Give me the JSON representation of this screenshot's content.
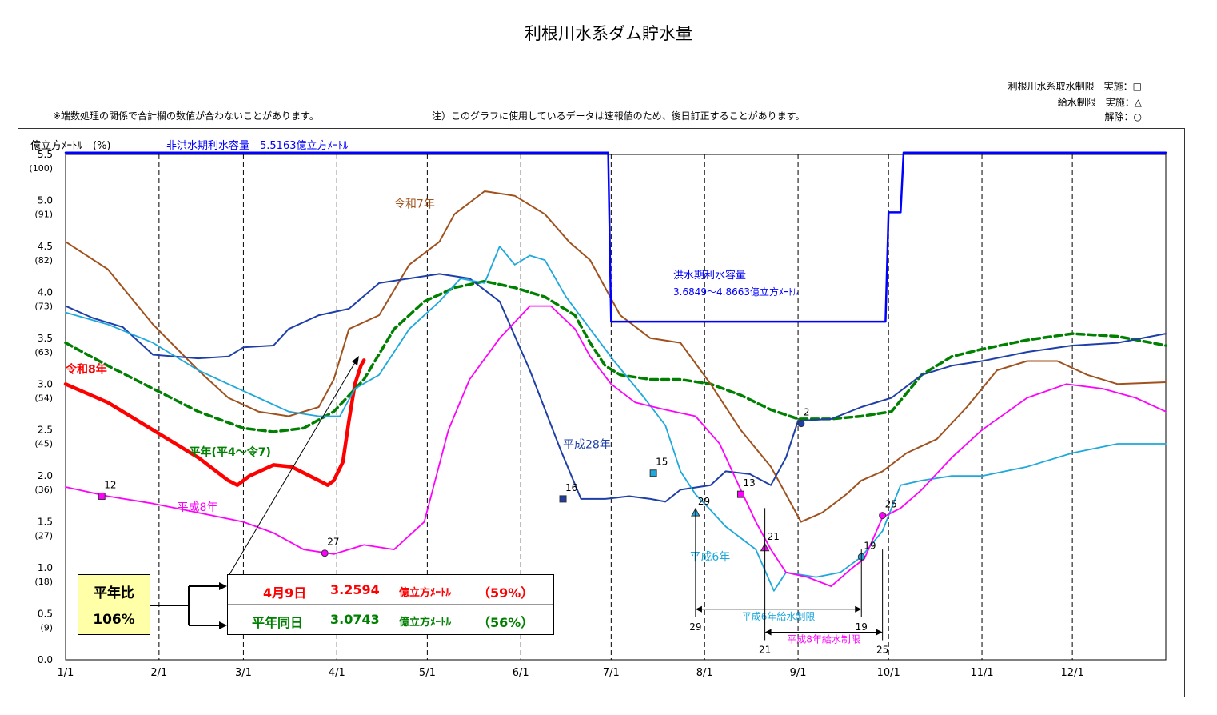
{
  "title": "利根川水系ダム貯水量",
  "legend": {
    "line1": "利根川水系取水制限　実施：□",
    "line2": "給水制限　実施：△",
    "line3": "解除：○"
  },
  "notes": {
    "left": "※端数処理の関係で合計欄の数値が合わないことがあります。",
    "right": "注）このグラフに使用しているデータは速報値のため、後日訂正することがあります。"
  },
  "summary": {
    "ratio_label": "平年比",
    "ratio_value": "106%",
    "current": {
      "date": "4月9日",
      "value": "3.2594",
      "unit": "億立方ﾒｰﾄﾙ",
      "pct": "（59%）"
    },
    "normal": {
      "date": "平年同日",
      "value": "3.0743",
      "unit": "億立方ﾒｰﾄﾙ",
      "pct": "（56%）"
    }
  },
  "colors": {
    "reiwa8": "#ff0000",
    "heinen": "#008000",
    "reiwa7": "#a0521e",
    "heisei28": "#1f3fa8",
    "heisei6": "#1ea8dc",
    "heisei8": "#ff00ff",
    "capacity": "#0000ff"
  },
  "chart_data": {
    "type": "line",
    "ylabel": "億立方ﾒｰﾄﾙ　(%)",
    "yticks": [
      {
        "v": 0.0,
        "label": "0.0",
        "pct": ""
      },
      {
        "v": 0.5,
        "label": "0.5",
        "pct": "(9)"
      },
      {
        "v": 1.0,
        "label": "1.0",
        "pct": "(18)"
      },
      {
        "v": 1.5,
        "label": "1.5",
        "pct": "(27)"
      },
      {
        "v": 2.0,
        "label": "2.0",
        "pct": "(36)"
      },
      {
        "v": 2.5,
        "label": "2.5",
        "pct": "(45)"
      },
      {
        "v": 3.0,
        "label": "3.0",
        "pct": "(54)"
      },
      {
        "v": 3.5,
        "label": "3.5",
        "pct": "(63)"
      },
      {
        "v": 4.0,
        "label": "4.0",
        "pct": "(73)"
      },
      {
        "v": 4.5,
        "label": "4.5",
        "pct": "(82)"
      },
      {
        "v": 5.0,
        "label": "5.0",
        "pct": "(91)"
      },
      {
        "v": 5.5,
        "label": "5.5",
        "pct": "(100)"
      }
    ],
    "ylim": [
      0,
      5.5
    ],
    "xlim": [
      1,
      366
    ],
    "xticks": [
      {
        "d": 1,
        "label": "1/1"
      },
      {
        "d": 32,
        "label": "2/1"
      },
      {
        "d": 60,
        "label": "3/1"
      },
      {
        "d": 91,
        "label": "4/1"
      },
      {
        "d": 121,
        "label": "5/1"
      },
      {
        "d": 152,
        "label": "6/1"
      },
      {
        "d": 182,
        "label": "7/1"
      },
      {
        "d": 213,
        "label": "8/1"
      },
      {
        "d": 244,
        "label": "9/1"
      },
      {
        "d": 274,
        "label": "10/1"
      },
      {
        "d": 305,
        "label": "11/1"
      },
      {
        "d": 335,
        "label": "12/1"
      }
    ],
    "capacity_text": "非洪水期利水容量　5.5163億立方ﾒｰﾄﾙ",
    "flood_text1": "洪水期利水容量",
    "flood_text2": "3.6849～4.8663億立方ﾒｰﾄﾙ",
    "series": [
      {
        "name": "令和8年",
        "key": "reiwa8",
        "width": 4.5,
        "dash": "",
        "pts": [
          [
            1,
            3.0
          ],
          [
            15,
            2.8
          ],
          [
            30,
            2.5
          ],
          [
            45,
            2.2
          ],
          [
            55,
            1.95
          ],
          [
            58,
            1.9
          ],
          [
            62,
            2.0
          ],
          [
            70,
            2.12
          ],
          [
            76,
            2.1
          ],
          [
            85,
            1.95
          ],
          [
            88,
            1.9
          ],
          [
            90,
            1.95
          ],
          [
            93,
            2.15
          ],
          [
            95,
            2.6
          ],
          [
            97,
            3.0
          ],
          [
            99,
            3.2
          ],
          [
            100,
            3.26
          ]
        ]
      },
      {
        "name": "平年(平4～令7)",
        "key": "heinen",
        "width": 3.5,
        "dash": "9,5",
        "pts": [
          [
            1,
            3.45
          ],
          [
            15,
            3.2
          ],
          [
            30,
            2.95
          ],
          [
            45,
            2.7
          ],
          [
            60,
            2.52
          ],
          [
            70,
            2.48
          ],
          [
            80,
            2.52
          ],
          [
            90,
            2.7
          ],
          [
            100,
            3.05
          ],
          [
            110,
            3.6
          ],
          [
            120,
            3.9
          ],
          [
            130,
            4.05
          ],
          [
            140,
            4.12
          ],
          [
            150,
            4.05
          ],
          [
            160,
            3.95
          ],
          [
            170,
            3.75
          ],
          [
            175,
            3.45
          ],
          [
            180,
            3.2
          ],
          [
            185,
            3.1
          ],
          [
            195,
            3.05
          ],
          [
            205,
            3.05
          ],
          [
            215,
            3.0
          ],
          [
            225,
            2.88
          ],
          [
            235,
            2.72
          ],
          [
            244,
            2.62
          ],
          [
            255,
            2.62
          ],
          [
            265,
            2.65
          ],
          [
            275,
            2.7
          ],
          [
            285,
            3.1
          ],
          [
            295,
            3.3
          ],
          [
            305,
            3.38
          ],
          [
            320,
            3.48
          ],
          [
            335,
            3.55
          ],
          [
            350,
            3.52
          ],
          [
            366,
            3.42
          ]
        ]
      },
      {
        "name": "令和7年",
        "key": "reiwa7",
        "width": 2,
        "dash": "",
        "pts": [
          [
            1,
            4.55
          ],
          [
            15,
            4.25
          ],
          [
            30,
            3.65
          ],
          [
            45,
            3.15
          ],
          [
            55,
            2.85
          ],
          [
            65,
            2.7
          ],
          [
            75,
            2.65
          ],
          [
            85,
            2.75
          ],
          [
            90,
            3.05
          ],
          [
            95,
            3.6
          ],
          [
            105,
            3.75
          ],
          [
            115,
            4.3
          ],
          [
            125,
            4.55
          ],
          [
            130,
            4.85
          ],
          [
            140,
            5.1
          ],
          [
            150,
            5.05
          ],
          [
            160,
            4.85
          ],
          [
            168,
            4.55
          ],
          [
            175,
            4.35
          ],
          [
            185,
            3.75
          ],
          [
            195,
            3.5
          ],
          [
            205,
            3.45
          ],
          [
            215,
            3.0
          ],
          [
            225,
            2.5
          ],
          [
            235,
            2.1
          ],
          [
            245,
            1.5
          ],
          [
            252,
            1.6
          ],
          [
            260,
            1.8
          ],
          [
            265,
            1.95
          ],
          [
            272,
            2.05
          ],
          [
            280,
            2.25
          ],
          [
            290,
            2.4
          ],
          [
            300,
            2.75
          ],
          [
            310,
            3.15
          ],
          [
            320,
            3.25
          ],
          [
            330,
            3.25
          ],
          [
            340,
            3.1
          ],
          [
            350,
            3.0
          ],
          [
            366,
            3.02
          ]
        ]
      },
      {
        "name": "平成28年",
        "key": "heisei28",
        "width": 2,
        "dash": "",
        "pts": [
          [
            1,
            3.85
          ],
          [
            10,
            3.72
          ],
          [
            20,
            3.62
          ],
          [
            30,
            3.32
          ],
          [
            45,
            3.28
          ],
          [
            55,
            3.3
          ],
          [
            60,
            3.4
          ],
          [
            70,
            3.42
          ],
          [
            75,
            3.6
          ],
          [
            85,
            3.75
          ],
          [
            95,
            3.82
          ],
          [
            105,
            4.1
          ],
          [
            115,
            4.15
          ],
          [
            125,
            4.2
          ],
          [
            135,
            4.15
          ],
          [
            145,
            3.9
          ],
          [
            155,
            3.15
          ],
          [
            165,
            2.3
          ],
          [
            172,
            1.75
          ],
          [
            180,
            1.75
          ],
          [
            188,
            1.78
          ],
          [
            195,
            1.75
          ],
          [
            200,
            1.72
          ],
          [
            205,
            1.85
          ],
          [
            215,
            1.9
          ],
          [
            220,
            2.05
          ],
          [
            228,
            2.02
          ],
          [
            235,
            1.9
          ],
          [
            240,
            2.2
          ],
          [
            244,
            2.6
          ],
          [
            255,
            2.62
          ],
          [
            265,
            2.75
          ],
          [
            275,
            2.85
          ],
          [
            285,
            3.1
          ],
          [
            295,
            3.2
          ],
          [
            305,
            3.25
          ],
          [
            320,
            3.35
          ],
          [
            335,
            3.42
          ],
          [
            350,
            3.45
          ],
          [
            366,
            3.55
          ]
        ]
      },
      {
        "name": "平成6年",
        "key": "heisei6",
        "width": 1.8,
        "dash": "",
        "pts": [
          [
            1,
            3.78
          ],
          [
            15,
            3.65
          ],
          [
            30,
            3.45
          ],
          [
            45,
            3.15
          ],
          [
            55,
            3.0
          ],
          [
            65,
            2.85
          ],
          [
            75,
            2.7
          ],
          [
            85,
            2.65
          ],
          [
            92,
            2.65
          ],
          [
            97,
            2.95
          ],
          [
            105,
            3.1
          ],
          [
            115,
            3.6
          ],
          [
            125,
            3.9
          ],
          [
            132,
            4.15
          ],
          [
            140,
            4.1
          ],
          [
            145,
            4.5
          ],
          [
            150,
            4.3
          ],
          [
            155,
            4.4
          ],
          [
            160,
            4.35
          ],
          [
            167,
            3.95
          ],
          [
            175,
            3.6
          ],
          [
            183,
            3.25
          ],
          [
            193,
            2.85
          ],
          [
            200,
            2.55
          ],
          [
            205,
            2.05
          ],
          [
            210,
            1.8
          ],
          [
            213,
            1.7
          ],
          [
            220,
            1.45
          ],
          [
            230,
            1.2
          ],
          [
            236,
            0.75
          ],
          [
            240,
            0.95
          ],
          [
            250,
            0.9
          ],
          [
            258,
            0.95
          ],
          [
            265,
            1.12
          ],
          [
            272,
            1.4
          ],
          [
            278,
            1.9
          ],
          [
            285,
            1.95
          ],
          [
            295,
            2.0
          ],
          [
            305,
            2.0
          ],
          [
            320,
            2.1
          ],
          [
            335,
            2.25
          ],
          [
            350,
            2.35
          ],
          [
            366,
            2.35
          ]
        ]
      },
      {
        "name": "平成8年",
        "key": "heisei8",
        "width": 1.8,
        "dash": "",
        "pts": [
          [
            1,
            1.88
          ],
          [
            15,
            1.78
          ],
          [
            30,
            1.7
          ],
          [
            45,
            1.6
          ],
          [
            60,
            1.5
          ],
          [
            70,
            1.38
          ],
          [
            80,
            1.2
          ],
          [
            90,
            1.15
          ],
          [
            100,
            1.25
          ],
          [
            110,
            1.2
          ],
          [
            120,
            1.5
          ],
          [
            128,
            2.5
          ],
          [
            135,
            3.05
          ],
          [
            145,
            3.5
          ],
          [
            155,
            3.85
          ],
          [
            162,
            3.85
          ],
          [
            170,
            3.6
          ],
          [
            175,
            3.3
          ],
          [
            182,
            3.0
          ],
          [
            190,
            2.8
          ],
          [
            200,
            2.72
          ],
          [
            210,
            2.65
          ],
          [
            218,
            2.35
          ],
          [
            225,
            1.85
          ],
          [
            230,
            1.5
          ],
          [
            235,
            1.2
          ],
          [
            240,
            0.95
          ],
          [
            247,
            0.9
          ],
          [
            255,
            0.8
          ],
          [
            262,
            1.0
          ],
          [
            266,
            1.1
          ],
          [
            272,
            1.55
          ],
          [
            278,
            1.65
          ],
          [
            285,
            1.85
          ],
          [
            295,
            2.2
          ],
          [
            305,
            2.5
          ],
          [
            320,
            2.85
          ],
          [
            333,
            3.0
          ],
          [
            345,
            2.95
          ],
          [
            356,
            2.85
          ],
          [
            366,
            2.7
          ]
        ]
      },
      {
        "name": "",
        "key": "capacity",
        "width": 2.5,
        "dash": "",
        "pts": [
          [
            1,
            5.52
          ],
          [
            181,
            5.52
          ],
          [
            182,
            3.68
          ],
          [
            273,
            3.68
          ],
          [
            274,
            4.87
          ],
          [
            278,
            4.87
          ],
          [
            279,
            5.52
          ],
          [
            366,
            5.52
          ]
        ]
      }
    ],
    "series_labels": [
      {
        "key": "reiwa8",
        "text": "令和8年",
        "d": 1,
        "v": 3.12,
        "bold": true
      },
      {
        "key": "heinen",
        "text": "平年(平4～令7)",
        "d": 42,
        "v": 2.22,
        "bold": true
      },
      {
        "key": "reiwa7",
        "text": "令和7年",
        "d": 110,
        "v": 4.92,
        "bold": false
      },
      {
        "key": "heisei28",
        "text": "平成28年",
        "d": 166,
        "v": 2.3,
        "bold": false
      },
      {
        "key": "heisei6",
        "text": "平成6年",
        "d": 208,
        "v": 1.08,
        "bold": false
      },
      {
        "key": "heisei8",
        "text": "平成8年",
        "d": 38,
        "v": 1.62,
        "bold": false
      }
    ],
    "markers": [
      {
        "key": "heisei8",
        "shape": "square",
        "d": 13,
        "v": 1.78,
        "label": "12"
      },
      {
        "key": "heisei8",
        "shape": "circle",
        "d": 87,
        "v": 1.16,
        "label": "27"
      },
      {
        "key": "heisei28",
        "shape": "square",
        "d": 166,
        "v": 1.75,
        "label": "16"
      },
      {
        "key": "heisei6",
        "shape": "square",
        "d": 196,
        "v": 2.03,
        "label": "15"
      },
      {
        "key": "heisei6",
        "shape": "triangle",
        "d": 210,
        "v": 1.6,
        "label": "29"
      },
      {
        "key": "heisei8",
        "shape": "square",
        "d": 225,
        "v": 1.8,
        "label": "13"
      },
      {
        "key": "heisei8",
        "shape": "triangle",
        "d": 233,
        "v": 1.22,
        "label": "21"
      },
      {
        "key": "heisei28",
        "shape": "circle",
        "d": 245,
        "v": 2.57,
        "label": "2"
      },
      {
        "key": "heisei6",
        "shape": "circle",
        "d": 265,
        "v": 1.12,
        "label": "19"
      },
      {
        "key": "heisei8",
        "shape": "circle",
        "d": 272,
        "v": 1.57,
        "label": "25"
      }
    ],
    "restriction_spans": [
      {
        "key": "heisei6",
        "from": 210,
        "to": 265,
        "label": "平成6年給水制限",
        "start": "29",
        "end": "19",
        "v": 0.55
      },
      {
        "key": "heisei8",
        "from": 233,
        "to": 272,
        "label": "平成8年給水制限",
        "start": "21",
        "end": "25",
        "v": 0.3
      }
    ]
  }
}
